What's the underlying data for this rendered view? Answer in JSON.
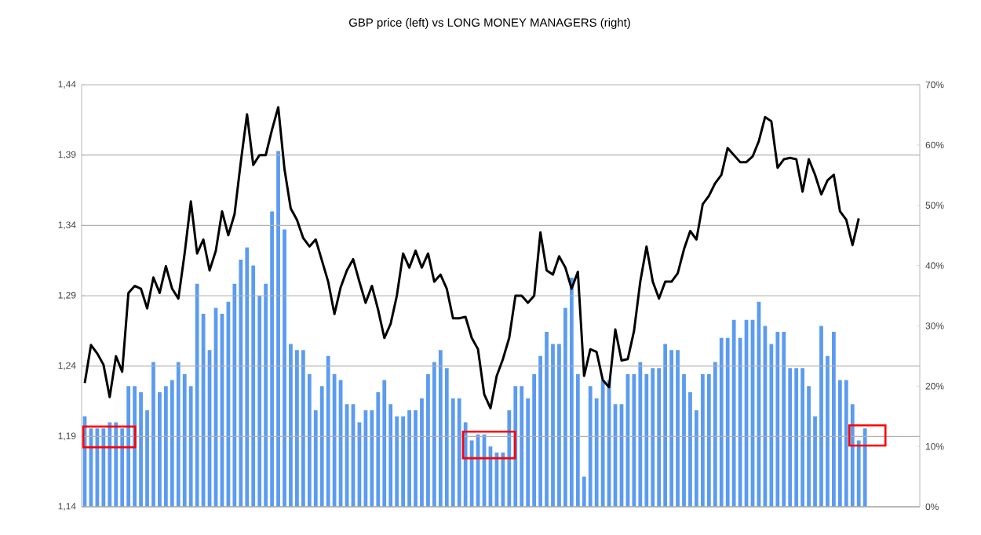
{
  "chart_data": {
    "type": "bar",
    "title": "GBP price (left) vs LONG MONEY MANAGERS (right)",
    "categories": [
      null,
      null,
      null,
      null,
      null,
      null,
      null,
      null,
      null,
      null,
      null,
      null,
      null,
      null,
      null,
      null,
      null,
      null,
      null,
      null,
      null,
      null,
      null,
      null,
      null,
      null,
      null,
      null,
      null,
      null,
      null,
      null,
      null,
      null,
      null,
      null,
      null,
      null,
      null,
      null,
      null,
      null,
      null,
      null,
      null,
      null,
      null,
      null,
      null,
      null,
      null,
      null,
      null,
      null,
      null,
      null,
      null,
      null,
      null,
      null,
      null,
      null,
      null,
      null,
      null,
      null,
      null,
      null,
      null,
      null,
      null,
      null,
      null,
      null,
      null,
      null,
      null,
      null,
      null,
      null,
      null,
      null,
      null,
      null,
      null,
      null,
      null,
      null,
      null,
      null,
      null,
      null,
      null,
      null,
      null,
      null,
      null,
      null,
      null,
      null,
      null,
      null,
      null,
      null,
      null,
      null,
      null,
      null,
      null,
      null,
      null,
      null,
      null,
      null,
      null,
      null,
      null,
      null,
      null,
      null,
      null,
      null,
      null,
      null,
      null,
      null
    ],
    "series": [
      {
        "axis": "y2",
        "color": "#5b9bf0",
        "values": [
          15,
          13,
          13,
          13,
          14,
          14,
          13,
          20,
          20,
          19,
          16,
          24,
          19,
          20,
          21,
          24,
          22,
          20,
          37,
          32,
          26,
          33,
          32,
          34,
          37,
          41,
          43,
          40,
          35,
          37,
          49,
          59,
          46,
          27,
          26,
          26,
          22,
          16,
          20,
          25,
          22,
          21,
          17,
          17,
          14,
          16,
          16,
          19,
          21,
          17,
          15,
          15,
          16,
          16,
          18,
          22,
          24,
          26,
          23,
          18,
          18,
          14,
          11,
          12,
          12,
          10,
          9,
          9,
          16,
          20,
          20,
          18,
          22,
          25,
          29,
          27,
          27,
          33,
          38,
          22,
          5,
          20,
          18,
          21,
          21,
          17,
          17,
          22,
          22,
          24,
          22,
          23,
          23,
          27,
          26,
          26,
          22,
          19,
          16,
          22,
          22,
          24,
          28,
          28,
          31,
          28,
          31,
          31,
          34,
          30,
          27,
          29,
          29,
          23,
          23,
          23,
          20,
          15,
          30,
          25,
          29,
          21,
          21,
          17,
          11,
          13
        ]
      },
      {
        "type": "line",
        "axis": "y",
        "color": "#000000",
        "values": [
          1.228,
          1.255,
          1.249,
          1.241,
          1.218,
          1.247,
          1.236,
          1.292,
          1.297,
          1.295,
          1.281,
          1.303,
          1.292,
          1.311,
          1.295,
          1.288,
          1.32,
          1.357,
          1.32,
          1.33,
          1.308,
          1.322,
          1.35,
          1.333,
          1.348,
          1.385,
          1.419,
          1.383,
          1.39,
          1.39,
          1.408,
          1.424,
          1.38,
          1.352,
          1.344,
          1.331,
          1.325,
          1.33,
          1.315,
          1.3,
          1.277,
          1.296,
          1.308,
          1.316,
          1.3,
          1.285,
          1.297,
          1.28,
          1.26,
          1.27,
          1.29,
          1.32,
          1.31,
          1.322,
          1.31,
          1.32,
          1.3,
          1.305,
          1.295,
          1.274,
          1.274,
          1.275,
          1.26,
          1.252,
          1.22,
          1.21,
          1.233,
          1.245,
          1.26,
          1.29,
          1.29,
          1.285,
          1.29,
          1.335,
          1.308,
          1.305,
          1.318,
          1.31,
          1.295,
          1.307,
          1.233,
          1.252,
          1.25,
          1.23,
          1.225,
          1.266,
          1.244,
          1.245,
          1.265,
          1.3,
          1.325,
          1.3,
          1.288,
          1.3,
          1.3,
          1.306,
          1.323,
          1.336,
          1.33,
          1.355,
          1.361,
          1.37,
          1.376,
          1.395,
          1.39,
          1.385,
          1.385,
          1.389,
          1.4,
          1.417,
          1.414,
          1.381,
          1.387,
          1.388,
          1.387,
          1.364,
          1.387,
          1.376,
          1.362,
          1.372,
          1.376,
          1.35,
          1.344,
          1.326,
          1.345,
          null
        ]
      }
    ],
    "ylim": [
      1.14,
      1.44
    ],
    "yticks": [
      {
        "value": 1.14,
        "label": "1,14"
      },
      {
        "value": 1.19,
        "label": "1,19"
      },
      {
        "value": 1.24,
        "label": "1,24"
      },
      {
        "value": 1.29,
        "label": "1,29"
      },
      {
        "value": 1.34,
        "label": "1,34"
      },
      {
        "value": 1.39,
        "label": "1,39"
      },
      {
        "value": 1.44,
        "label": "1,44"
      }
    ],
    "y2lim": [
      0,
      70
    ],
    "y2ticks": [
      {
        "value": 0,
        "label": "0%"
      },
      {
        "value": 10,
        "label": "10%"
      },
      {
        "value": 20,
        "label": "20%"
      },
      {
        "value": 30,
        "label": "30%"
      },
      {
        "value": 40,
        "label": "40%"
      },
      {
        "value": 50,
        "label": "50%"
      },
      {
        "value": 60,
        "label": "60%"
      },
      {
        "value": 70,
        "label": "70%"
      }
    ],
    "grid": "y",
    "tick_labels": "y"
  }
}
